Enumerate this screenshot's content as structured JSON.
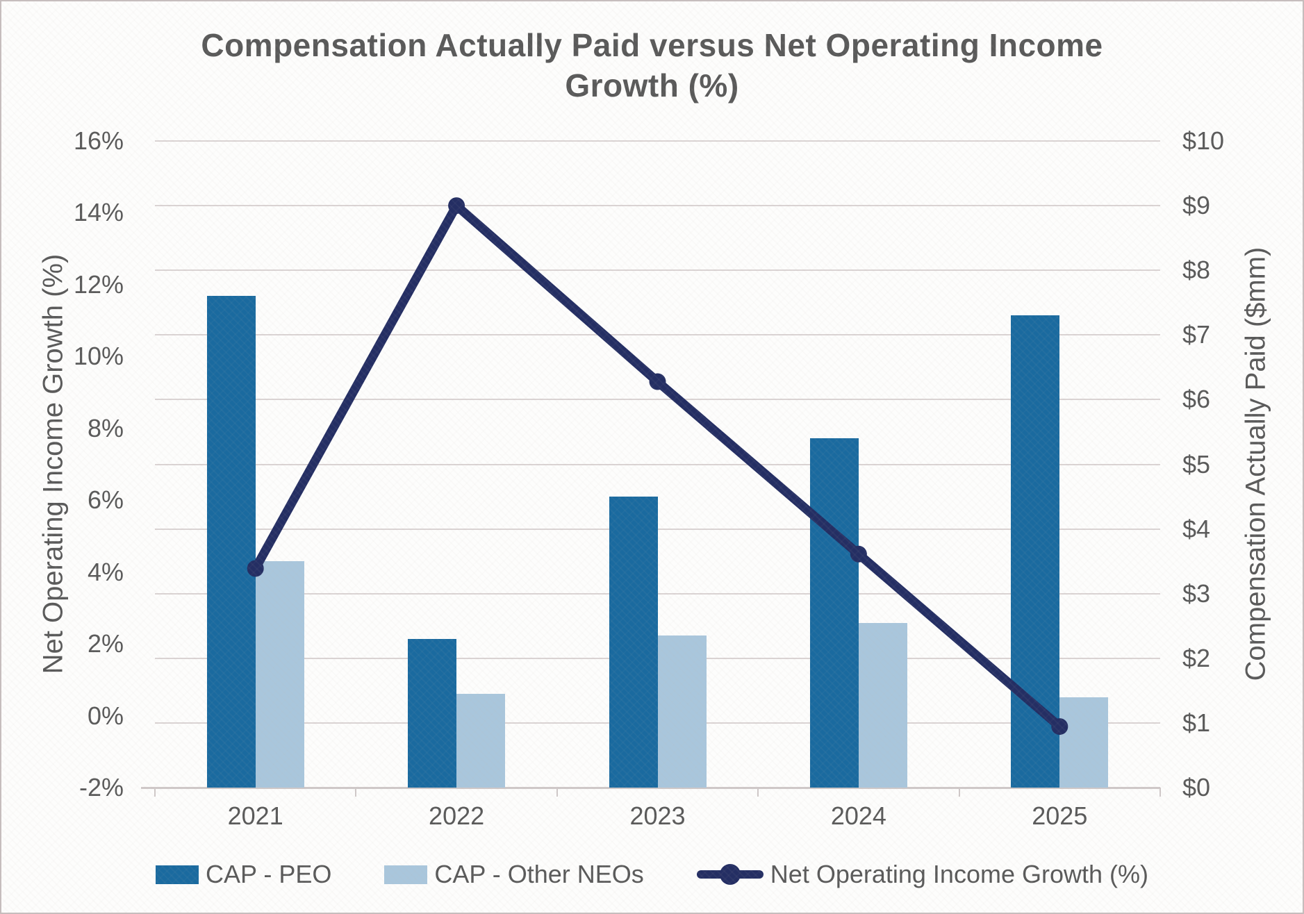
{
  "title": {
    "line1": "Compensation Actually Paid versus Net Operating Income",
    "line2": "Growth (%)"
  },
  "left_axis": {
    "title": "Net Operating Income Growth (%)",
    "tick_labels": [
      "16%",
      "14%",
      "12%",
      "10%",
      "8%",
      "6%",
      "4%",
      "2%",
      "0%",
      "-2%"
    ],
    "min": -2,
    "max": 16
  },
  "right_axis": {
    "title": "Compensation Actually Paid ($mm)",
    "tick_labels": [
      "$10",
      "$9",
      "$8",
      "$7",
      "$6",
      "$5",
      "$4",
      "$3",
      "$2",
      "$1",
      "$0"
    ],
    "min": 0,
    "max": 10
  },
  "x_axis": {
    "categories": [
      "2021",
      "2022",
      "2023",
      "2024",
      "2025"
    ]
  },
  "legend": [
    {
      "label": "CAP - PEO",
      "type": "bar",
      "color": "#1a6a9f"
    },
    {
      "label": "CAP - Other NEOs",
      "type": "bar",
      "color": "#a9c6dc"
    },
    {
      "label": "Net Operating Income Growth (%)",
      "type": "line",
      "color": "#242e63"
    }
  ],
  "colors": {
    "bar_peo": "#1a6a9f",
    "bar_other_neos": "#a9c6dc",
    "line": "#242e63",
    "text": "#595959",
    "gridline": "#dad3d3",
    "axis_line": "#cfc8c8"
  },
  "chart_data": {
    "type": "bar+line combo",
    "categories": [
      "2021",
      "2022",
      "2023",
      "2024",
      "2025"
    ],
    "series": [
      {
        "name": "CAP - PEO",
        "type": "bar",
        "axis": "right",
        "unit": "$mm",
        "values": [
          7.6,
          2.3,
          4.5,
          5.4,
          7.3
        ]
      },
      {
        "name": "CAP - Other NEOs",
        "type": "bar",
        "axis": "right",
        "unit": "$mm",
        "values": [
          3.5,
          1.45,
          2.35,
          2.55,
          1.4
        ]
      },
      {
        "name": "Net Operating Income Growth (%)",
        "type": "line",
        "axis": "left",
        "unit": "%",
        "values": [
          4.1,
          14.2,
          9.3,
          4.5,
          -0.3
        ]
      }
    ],
    "title": "Compensation Actually Paid versus Net Operating Income Growth (%)",
    "left_ylabel": "Net Operating Income Growth (%)",
    "right_ylabel": "Compensation Actually Paid ($mm)",
    "left_ylim": [
      -2,
      16
    ],
    "left_tick_step": 2,
    "right_ylim": [
      0,
      10
    ],
    "right_tick_step": 1,
    "grid": "horizontal, at right-axis $1 steps",
    "legend_position": "bottom"
  }
}
